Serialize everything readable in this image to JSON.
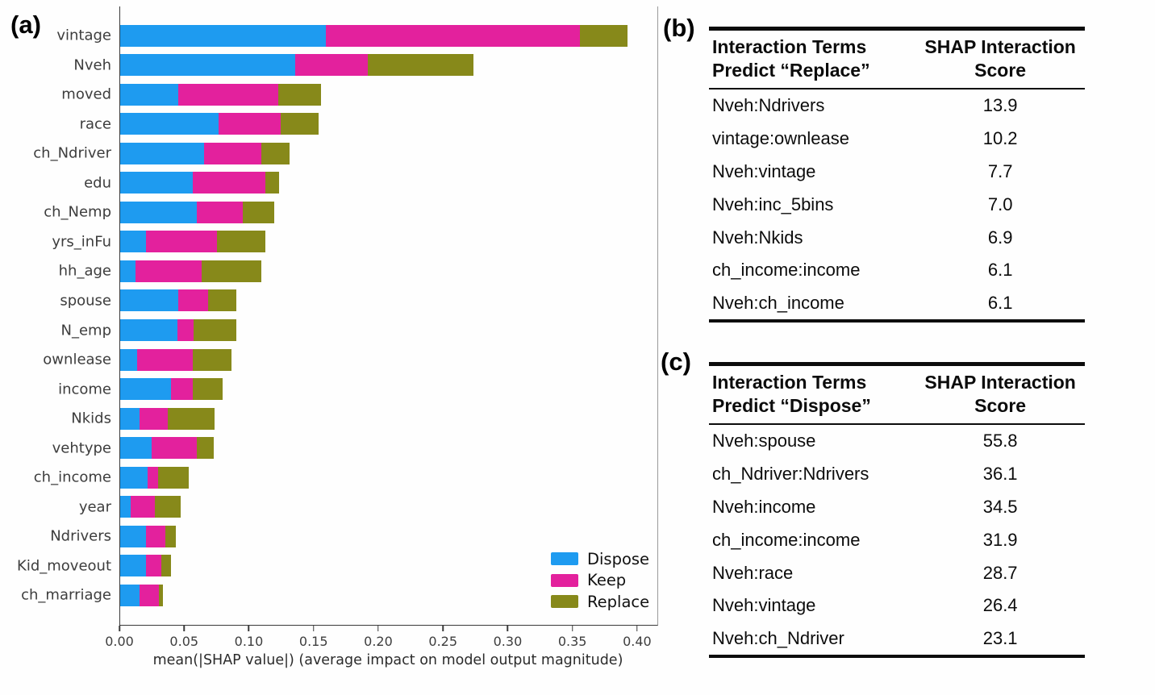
{
  "panels": {
    "a": {
      "label": "(a)"
    },
    "b": {
      "label": "(b)"
    },
    "c": {
      "label": "(c)"
    }
  },
  "chart_data": {
    "type": "bar",
    "variant": "horizontal_stacked",
    "title": "",
    "xlabel": "mean(|SHAP value|) (average impact on model output magnitude)",
    "ylabel": "",
    "xlim": [
      0,
      0.415
    ],
    "xticks": [
      0.0,
      0.05,
      0.1,
      0.15,
      0.2,
      0.25,
      0.3,
      0.35,
      0.4
    ],
    "xtick_labels": [
      "0.00",
      "0.05",
      "0.10",
      "0.15",
      "0.20",
      "0.25",
      "0.30",
      "0.35",
      "0.40"
    ],
    "grid": false,
    "legend_position": "lower right inside plot",
    "categories": [
      "vintage",
      "Nveh",
      "moved",
      "race",
      "ch_Ndriver",
      "edu",
      "ch_Nemp",
      "yrs_inFu",
      "hh_age",
      "spouse",
      "N_emp",
      "ownlease",
      "income",
      "Nkids",
      "vehtype",
      "ch_income",
      "year",
      "Ndrivers",
      "Kid_moveout",
      "ch_marriage"
    ],
    "series": [
      {
        "name": "Dispose",
        "color": "#1E9BF0",
        "values": [
          0.159,
          0.135,
          0.045,
          0.076,
          0.065,
          0.056,
          0.059,
          0.02,
          0.012,
          0.045,
          0.044,
          0.013,
          0.039,
          0.015,
          0.024,
          0.021,
          0.008,
          0.02,
          0.02,
          0.015
        ]
      },
      {
        "name": "Keep",
        "color": "#E3219D",
        "values": [
          0.196,
          0.056,
          0.077,
          0.048,
          0.044,
          0.056,
          0.036,
          0.055,
          0.051,
          0.023,
          0.013,
          0.043,
          0.017,
          0.022,
          0.035,
          0.008,
          0.019,
          0.015,
          0.012,
          0.015
        ]
      },
      {
        "name": "Replace",
        "color": "#87891A",
        "values": [
          0.037,
          0.082,
          0.033,
          0.029,
          0.022,
          0.011,
          0.024,
          0.037,
          0.046,
          0.022,
          0.033,
          0.03,
          0.023,
          0.036,
          0.013,
          0.024,
          0.02,
          0.008,
          0.007,
          0.003
        ]
      }
    ]
  },
  "table_b": {
    "header": {
      "col1_line1": "Interaction Terms",
      "col1_line2": "Predict “Replace”",
      "col2_line1": "SHAP Interaction",
      "col2_line2": "Score"
    },
    "rows": [
      {
        "term": "Nveh:Ndrivers",
        "score": "13.9"
      },
      {
        "term": "vintage:ownlease",
        "score": "10.2"
      },
      {
        "term": "Nveh:vintage",
        "score": "7.7"
      },
      {
        "term": "Nveh:inc_5bins",
        "score": "7.0"
      },
      {
        "term": "Nveh:Nkids",
        "score": "6.9"
      },
      {
        "term": "ch_income:income",
        "score": "6.1"
      },
      {
        "term": "Nveh:ch_income",
        "score": "6.1"
      }
    ]
  },
  "table_c": {
    "header": {
      "col1_line1": "Interaction Terms",
      "col1_line2": "Predict “Dispose”",
      "col2_line1": "SHAP Interaction",
      "col2_line2": "Score"
    },
    "rows": [
      {
        "term": "Nveh:spouse",
        "score": "55.8"
      },
      {
        "term": "ch_Ndriver:Ndrivers",
        "score": "36.1"
      },
      {
        "term": "Nveh:income",
        "score": "34.5"
      },
      {
        "term": "ch_income:income",
        "score": "31.9"
      },
      {
        "term": "Nveh:race",
        "score": "28.7"
      },
      {
        "term": "Nveh:vintage",
        "score": "26.4"
      },
      {
        "term": "Nveh:ch_Ndriver",
        "score": "23.1"
      }
    ]
  }
}
